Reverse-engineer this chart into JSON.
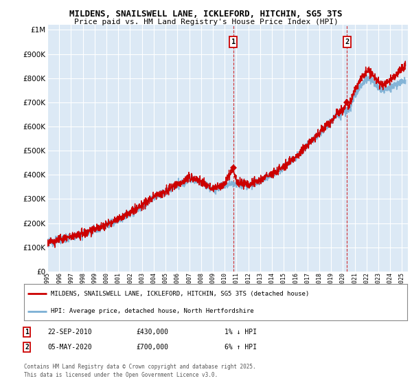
{
  "title_line1": "MILDENS, SNAILSWELL LANE, ICKLEFORD, HITCHIN, SG5 3TS",
  "title_line2": "Price paid vs. HM Land Registry's House Price Index (HPI)",
  "ytick_values": [
    0,
    100000,
    200000,
    300000,
    400000,
    500000,
    600000,
    700000,
    800000,
    900000,
    1000000
  ],
  "ylim": [
    0,
    1020000
  ],
  "xlim_start": 1995,
  "xlim_end": 2025.5,
  "hpi_color": "#7bafd4",
  "price_color": "#cc0000",
  "plot_bg_color": "#dce9f5",
  "grid_color": "#ffffff",
  "sale1_x": 2010.73,
  "sale1_y": 430000,
  "sale1_label": "1",
  "sale2_x": 2020.35,
  "sale2_y": 700000,
  "sale2_label": "2",
  "legend_line1": "MILDENS, SNAILSWELL LANE, ICKLEFORD, HITCHIN, SG5 3TS (detached house)",
  "legend_line2": "HPI: Average price, detached house, North Hertfordshire",
  "annotation1_date": "22-SEP-2010",
  "annotation1_price": "£430,000",
  "annotation1_hpi": "1% ↓ HPI",
  "annotation2_date": "05-MAY-2020",
  "annotation2_price": "£700,000",
  "annotation2_hpi": "6% ↑ HPI",
  "footer": "Contains HM Land Registry data © Crown copyright and database right 2025.\nThis data is licensed under the Open Government Licence v3.0."
}
